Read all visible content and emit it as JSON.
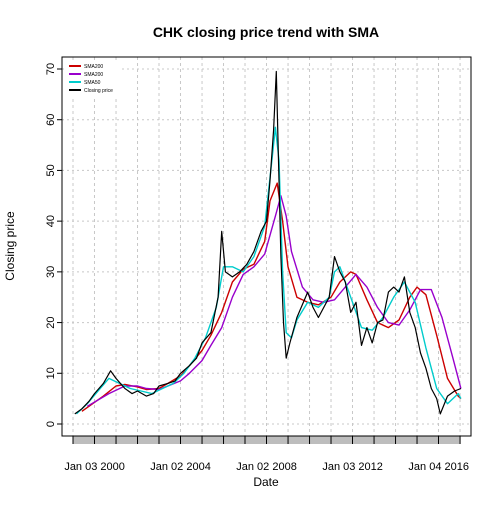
{
  "chart_data": {
    "type": "line",
    "title": "CHK closing price trend with SMA",
    "xlabel": "Date",
    "ylabel": "Closing price",
    "x_range": [
      "1999-01-01",
      "2016-12-31"
    ],
    "x_ticks": [
      "Jan 03 2000",
      "Jan 02 2004",
      "Jan 02 2008",
      "Jan 03 2012",
      "Jan 04 2016"
    ],
    "ylim": [
      0,
      70
    ],
    "y_ticks": [
      0,
      10,
      20,
      30,
      40,
      50,
      60,
      70
    ],
    "grid": true,
    "legend_position": "top-left",
    "series": [
      {
        "name": "SMA200",
        "color": "#cc0000",
        "points": [
          [
            "1999-06-01",
            2.5
          ],
          [
            "2000-06-01",
            5.5
          ],
          [
            "2001-01-01",
            7.5
          ],
          [
            "2001-06-01",
            7.8
          ],
          [
            "2002-01-01",
            7.3
          ],
          [
            "2002-06-01",
            6.8
          ],
          [
            "2003-01-01",
            7.0
          ],
          [
            "2003-06-01",
            8.0
          ],
          [
            "2004-01-01",
            9.5
          ],
          [
            "2004-06-01",
            11.5
          ],
          [
            "2005-01-01",
            14.5
          ],
          [
            "2005-06-01",
            17.5
          ],
          [
            "2005-12-01",
            22.0
          ],
          [
            "2006-06-01",
            28.0
          ],
          [
            "2006-12-01",
            30.5
          ],
          [
            "2007-06-01",
            31.5
          ],
          [
            "2007-12-01",
            36.0
          ],
          [
            "2008-03-01",
            44.0
          ],
          [
            "2008-07-01",
            47.5
          ],
          [
            "2008-10-01",
            40.0
          ],
          [
            "2009-01-01",
            31.0
          ],
          [
            "2009-06-01",
            25.0
          ],
          [
            "2009-12-01",
            24.0
          ],
          [
            "2010-06-01",
            23.5
          ],
          [
            "2011-01-01",
            25.0
          ],
          [
            "2011-06-01",
            28.0
          ],
          [
            "2011-12-01",
            30.0
          ],
          [
            "2012-03-01",
            29.5
          ],
          [
            "2012-09-01",
            24.5
          ],
          [
            "2013-03-01",
            20.0
          ],
          [
            "2013-09-01",
            19.0
          ],
          [
            "2014-03-01",
            20.5
          ],
          [
            "2014-09-01",
            25.0
          ],
          [
            "2015-01-01",
            27.0
          ],
          [
            "2015-06-01",
            25.5
          ],
          [
            "2015-12-01",
            17.5
          ],
          [
            "2016-06-01",
            9.0
          ],
          [
            "2016-12-01",
            5.5
          ],
          [
            "2017-01-15",
            5.0
          ]
        ]
      },
      {
        "name": "SMA200",
        "color": "#9900cc",
        "points": [
          [
            "1999-09-01",
            3.5
          ],
          [
            "2000-09-01",
            6.0
          ],
          [
            "2001-06-01",
            7.5
          ],
          [
            "2002-01-01",
            7.5
          ],
          [
            "2002-06-01",
            7.0
          ],
          [
            "2003-01-01",
            6.8
          ],
          [
            "2003-06-01",
            7.5
          ],
          [
            "2004-01-01",
            8.5
          ],
          [
            "2004-06-01",
            10.0
          ],
          [
            "2005-01-01",
            12.5
          ],
          [
            "2005-06-01",
            15.5
          ],
          [
            "2005-12-01",
            19.0
          ],
          [
            "2006-06-01",
            25.0
          ],
          [
            "2006-12-01",
            29.5
          ],
          [
            "2007-06-01",
            31.0
          ],
          [
            "2007-12-01",
            33.5
          ],
          [
            "2008-06-01",
            41.0
          ],
          [
            "2008-09-01",
            45.0
          ],
          [
            "2008-12-01",
            41.0
          ],
          [
            "2009-03-01",
            34.0
          ],
          [
            "2009-09-01",
            27.0
          ],
          [
            "2010-03-01",
            24.5
          ],
          [
            "2010-09-01",
            24.0
          ],
          [
            "2011-03-01",
            24.5
          ],
          [
            "2011-09-01",
            27.0
          ],
          [
            "2012-03-01",
            29.5
          ],
          [
            "2012-09-01",
            27.0
          ],
          [
            "2013-03-01",
            23.0
          ],
          [
            "2013-09-01",
            20.0
          ],
          [
            "2014-03-01",
            19.5
          ],
          [
            "2014-09-01",
            22.5
          ],
          [
            "2015-03-01",
            26.5
          ],
          [
            "2015-09-01",
            26.5
          ],
          [
            "2016-03-01",
            21.0
          ],
          [
            "2016-09-01",
            13.0
          ],
          [
            "2017-01-15",
            7.0
          ]
        ]
      },
      {
        "name": "SMA50",
        "color": "#00cccc",
        "points": [
          [
            "1999-03-01",
            2.0
          ],
          [
            "1999-09-01",
            4.0
          ],
          [
            "2000-03-01",
            6.5
          ],
          [
            "2000-09-01",
            9.0
          ],
          [
            "2001-03-01",
            8.0
          ],
          [
            "2001-09-01",
            7.0
          ],
          [
            "2002-03-01",
            6.5
          ],
          [
            "2002-09-01",
            6.0
          ],
          [
            "2003-03-01",
            7.0
          ],
          [
            "2003-09-01",
            8.0
          ],
          [
            "2004-03-01",
            10.0
          ],
          [
            "2004-09-01",
            13.0
          ],
          [
            "2005-03-01",
            17.0
          ],
          [
            "2005-09-01",
            23.0
          ],
          [
            "2006-01-01",
            31.0
          ],
          [
            "2006-06-01",
            31.0
          ],
          [
            "2006-12-01",
            30.0
          ],
          [
            "2007-06-01",
            33.0
          ],
          [
            "2007-12-01",
            39.0
          ],
          [
            "2008-04-01",
            52.0
          ],
          [
            "2008-06-01",
            58.5
          ],
          [
            "2008-08-01",
            52.0
          ],
          [
            "2008-10-01",
            30.0
          ],
          [
            "2008-12-01",
            18.0
          ],
          [
            "2009-03-01",
            17.0
          ],
          [
            "2009-06-01",
            20.5
          ],
          [
            "2009-12-01",
            24.0
          ],
          [
            "2010-06-01",
            23.0
          ],
          [
            "2010-12-01",
            25.0
          ],
          [
            "2011-03-01",
            30.0
          ],
          [
            "2011-06-01",
            31.0
          ],
          [
            "2011-12-01",
            25.0
          ],
          [
            "2012-06-01",
            19.0
          ],
          [
            "2012-12-01",
            18.5
          ],
          [
            "2013-06-01",
            21.0
          ],
          [
            "2013-12-01",
            25.0
          ],
          [
            "2014-06-01",
            28.0
          ],
          [
            "2014-12-01",
            24.0
          ],
          [
            "2015-06-01",
            15.0
          ],
          [
            "2015-12-01",
            7.0
          ],
          [
            "2016-06-01",
            4.0
          ],
          [
            "2016-12-01",
            6.0
          ],
          [
            "2017-01-15",
            5.0
          ]
        ]
      },
      {
        "name": "Closing price",
        "color": "#000000",
        "points": [
          [
            "1999-02-01",
            2.0
          ],
          [
            "1999-06-01",
            3.0
          ],
          [
            "1999-10-01",
            4.5
          ],
          [
            "2000-01-01",
            6.0
          ],
          [
            "2000-06-01",
            8.0
          ],
          [
            "2000-10-01",
            10.5
          ],
          [
            "2001-01-01",
            9.0
          ],
          [
            "2001-06-01",
            7.0
          ],
          [
            "2001-10-01",
            6.0
          ],
          [
            "2002-01-01",
            6.5
          ],
          [
            "2002-06-01",
            5.5
          ],
          [
            "2002-10-01",
            6.0
          ],
          [
            "2003-01-01",
            7.5
          ],
          [
            "2003-06-01",
            8.0
          ],
          [
            "2003-10-01",
            8.5
          ],
          [
            "2004-01-01",
            10.0
          ],
          [
            "2004-06-01",
            11.5
          ],
          [
            "2004-10-01",
            13.0
          ],
          [
            "2005-01-01",
            16.0
          ],
          [
            "2005-06-01",
            18.0
          ],
          [
            "2005-10-01",
            25.0
          ],
          [
            "2005-12-01",
            38.0
          ],
          [
            "2006-02-01",
            30.0
          ],
          [
            "2006-06-01",
            29.0
          ],
          [
            "2006-10-01",
            30.0
          ],
          [
            "2007-02-01",
            31.5
          ],
          [
            "2007-06-01",
            34.0
          ],
          [
            "2007-10-01",
            38.0
          ],
          [
            "2008-01-01",
            40.0
          ],
          [
            "2008-03-01",
            48.0
          ],
          [
            "2008-05-01",
            58.0
          ],
          [
            "2008-06-15",
            69.5
          ],
          [
            "2008-08-01",
            48.0
          ],
          [
            "2008-09-01",
            33.0
          ],
          [
            "2008-10-15",
            20.0
          ],
          [
            "2008-12-01",
            13.0
          ],
          [
            "2009-02-01",
            16.0
          ],
          [
            "2009-06-01",
            21.0
          ],
          [
            "2009-12-01",
            26.0
          ],
          [
            "2010-03-01",
            23.0
          ],
          [
            "2010-06-01",
            21.0
          ],
          [
            "2010-12-01",
            25.0
          ],
          [
            "2011-03-01",
            33.0
          ],
          [
            "2011-06-01",
            30.0
          ],
          [
            "2011-09-01",
            28.0
          ],
          [
            "2011-12-01",
            22.0
          ],
          [
            "2012-03-01",
            24.0
          ],
          [
            "2012-06-01",
            15.5
          ],
          [
            "2012-09-01",
            19.0
          ],
          [
            "2012-12-01",
            16.0
          ],
          [
            "2013-03-01",
            20.0
          ],
          [
            "2013-06-01",
            20.5
          ],
          [
            "2013-09-01",
            26.0
          ],
          [
            "2013-12-01",
            27.0
          ],
          [
            "2014-03-01",
            26.0
          ],
          [
            "2014-06-01",
            29.0
          ],
          [
            "2014-09-01",
            22.0
          ],
          [
            "2014-12-01",
            19.0
          ],
          [
            "2015-03-01",
            14.0
          ],
          [
            "2015-06-01",
            11.0
          ],
          [
            "2015-09-01",
            7.0
          ],
          [
            "2015-12-01",
            5.0
          ],
          [
            "2016-02-01",
            2.0
          ],
          [
            "2016-06-01",
            5.5
          ],
          [
            "2016-10-01",
            6.5
          ],
          [
            "2017-01-15",
            7.0
          ]
        ]
      }
    ]
  }
}
